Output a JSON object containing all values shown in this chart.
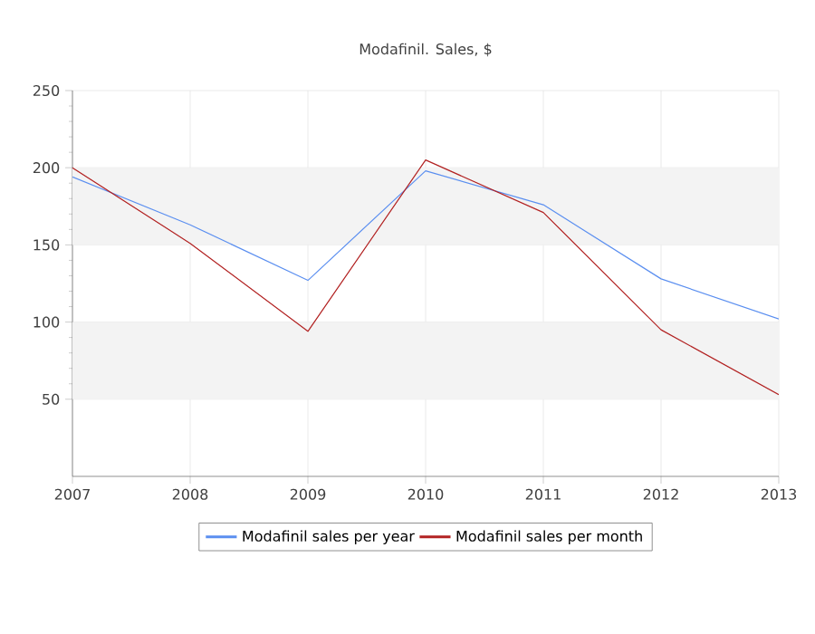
{
  "chart_data": {
    "type": "line",
    "title": "Modafinil. Sales, $",
    "x": [
      2007,
      2008,
      2009,
      2010,
      2011,
      2012,
      2013
    ],
    "series": [
      {
        "name": "Modafinil sales per year",
        "color": "#5b8ff0",
        "values": [
          194,
          163,
          127,
          198,
          176,
          128,
          102
        ]
      },
      {
        "name": "Modafinil sales per month",
        "color": "#b22222",
        "values": [
          200,
          151,
          94,
          205,
          171,
          95,
          53
        ]
      }
    ],
    "xlim": [
      2007,
      2013
    ],
    "xticks": [
      2007,
      2008,
      2009,
      2010,
      2011,
      2012,
      2013
    ],
    "ylim": [
      0,
      250
    ],
    "yticks": [
      50,
      100,
      150,
      200,
      250
    ],
    "bands": [
      {
        "axis": "y",
        "from": 50,
        "to": 100,
        "color": "#f3f3f3"
      },
      {
        "axis": "y",
        "from": 150,
        "to": 200,
        "color": "#f3f3f3"
      }
    ],
    "grid": true,
    "legend": "bottom",
    "marker": "none",
    "line_style": "solid"
  }
}
